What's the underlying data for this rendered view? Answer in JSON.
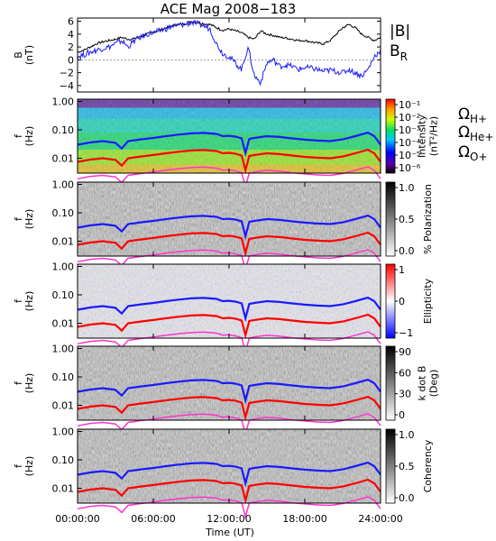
{
  "chart_data": {
    "type": "multi-panel time series with dynamic spectrograms",
    "title": "ACE Mag 2008−183",
    "x_axis": {
      "label": "Time (UT)",
      "range_hours": [
        0,
        24
      ],
      "tick_labels": [
        "00:00:00",
        "06:00:00",
        "12:00:00",
        "18:00:00",
        "24:00:00"
      ],
      "tick_hours": [
        0,
        6,
        12,
        18,
        24
      ]
    },
    "panels": [
      {
        "id": "b-field",
        "type": "line",
        "ylabel_lines": [
          "B",
          "(nT)"
        ],
        "ylim": [
          -5,
          6.5
        ],
        "yticks": [
          -4,
          -2,
          0,
          2,
          4,
          6
        ],
        "ytick_labels": [
          "−4",
          "−2",
          "0",
          "2",
          "4",
          "6"
        ],
        "series": [
          {
            "name": "|B|",
            "color": "#000000",
            "hours": [
              0,
              0.5,
              1,
              1.5,
              2,
              2.5,
              3,
              3.5,
              4,
              4.5,
              5,
              5.5,
              6,
              6.5,
              7,
              7.5,
              8,
              8.5,
              9,
              9.5,
              10,
              10.5,
              11,
              11.5,
              12,
              12.5,
              13,
              13.5,
              14,
              14.5,
              15,
              15.5,
              16,
              16.5,
              17,
              17.5,
              18,
              18.5,
              19,
              19.5,
              20,
              20.5,
              21,
              21.5,
              22,
              22.5,
              23,
              23.5,
              24
            ],
            "values": [
              1.2,
              1.5,
              2.0,
              2.5,
              2.8,
              3.0,
              3.2,
              3.5,
              3.2,
              3.3,
              3.6,
              4.0,
              4.3,
              4.6,
              5.0,
              5.3,
              5.5,
              5.6,
              6.0,
              5.8,
              5.6,
              5.5,
              5.0,
              4.6,
              4.8,
              4.5,
              4.2,
              3.5,
              3.2,
              4.5,
              4.0,
              3.8,
              3.5,
              3.4,
              3.2,
              3.0,
              3.0,
              2.8,
              2.6,
              2.5,
              3.0,
              4.0,
              5.0,
              5.5,
              5.0,
              4.0,
              3.5,
              3.0,
              3.5
            ]
          },
          {
            "name": "B",
            "name_sub": "R",
            "color": "#1a1aff",
            "hours": [
              0,
              0.5,
              1,
              1.5,
              2,
              2.5,
              3,
              3.5,
              4,
              4.5,
              5,
              5.5,
              6,
              6.5,
              7,
              7.5,
              8,
              8.5,
              9,
              9.5,
              10,
              10.5,
              11,
              11.5,
              12,
              12.5,
              13,
              13.5,
              14,
              14.5,
              15,
              15.5,
              16,
              16.5,
              17,
              17.5,
              18,
              18.5,
              19,
              19.5,
              20,
              20.5,
              21,
              21.5,
              22,
              22.5,
              23,
              23.5,
              24
            ],
            "values": [
              0.5,
              0.8,
              1.2,
              1.5,
              1.8,
              2.0,
              2.5,
              3.0,
              2.0,
              3.0,
              3.5,
              4.0,
              4.2,
              4.5,
              4.8,
              5.2,
              5.4,
              5.5,
              5.8,
              5.6,
              5.3,
              4.8,
              2.5,
              1.0,
              0.5,
              -0.5,
              -1.5,
              2.0,
              -2.5,
              -3.5,
              -0.5,
              0,
              -1.0,
              -0.8,
              -1.0,
              -1.5,
              -1.2,
              -1.3,
              -1.5,
              -1.8,
              -1.6,
              -1.8,
              -2.0,
              -1.5,
              -2.0,
              -2.5,
              -1.5,
              0.5,
              1.5
            ]
          }
        ]
      },
      {
        "id": "intensity",
        "type": "spectrogram",
        "ylabel_lines": [
          "f",
          "(Hz)"
        ],
        "colorbar": {
          "label_lines": [
            "Intensity",
            "(nT²/Hz)"
          ],
          "scale": "log",
          "range": [
            1e-06,
            0.3
          ],
          "tick_labels": [
            "10⁻¹",
            "10⁻²",
            "10⁻³",
            "10⁻⁴",
            "10⁻⁵",
            "10⁻⁶"
          ],
          "palette": "rainbow"
        }
      },
      {
        "id": "polarization",
        "type": "spectrogram",
        "ylabel_lines": [
          "f",
          "(Hz)"
        ],
        "colorbar": {
          "label_lines": [
            "% Polarization"
          ],
          "range": [
            0,
            1
          ],
          "tick_labels": [
            "1.0",
            "0.5",
            "0.0"
          ],
          "palette": "gray"
        }
      },
      {
        "id": "ellipticity",
        "type": "spectrogram",
        "ylabel_lines": [
          "f",
          "(Hz)"
        ],
        "colorbar": {
          "label_lines": [
            "Ellipticity"
          ],
          "range": [
            -1,
            1
          ],
          "tick_labels": [
            "1",
            "0",
            "−1"
          ],
          "palette": "bluewhitered"
        }
      },
      {
        "id": "kdotb",
        "type": "spectrogram",
        "ylabel_lines": [
          "f",
          "(Hz)"
        ],
        "colorbar": {
          "label_lines": [
            "k dot B",
            "(Deg)"
          ],
          "range": [
            0,
            90
          ],
          "tick_labels": [
            "90",
            "60",
            "30",
            "0"
          ],
          "palette": "gray"
        }
      },
      {
        "id": "coherency",
        "type": "spectrogram",
        "ylabel_lines": [
          "f",
          "(Hz)"
        ],
        "colorbar": {
          "label_lines": [
            "Coherency"
          ],
          "range": [
            0,
            1
          ],
          "tick_labels": [
            "1.0",
            "0.5",
            "0.0"
          ],
          "palette": "gray"
        }
      }
    ],
    "frequency_axis": {
      "scale": "log",
      "range_hz": [
        0.003,
        1.2
      ],
      "tick_hz": [
        1,
        0.1,
        0.01
      ],
      "tick_labels": [
        "1.00",
        "0.10",
        "0.01"
      ]
    },
    "gyrofrequency_overlays": [
      {
        "symbol": "Ω",
        "sub": "H+",
        "color": "#1a1aff",
        "hours": [
          0,
          1,
          2,
          3,
          3.5,
          4,
          5,
          6,
          7,
          8,
          9,
          10,
          11,
          11.5,
          12,
          12.5,
          13,
          13.3,
          13.6,
          14,
          15,
          16,
          17,
          18,
          19,
          20,
          21,
          22,
          23,
          23.5,
          24
        ],
        "values": [
          0.03,
          0.036,
          0.04,
          0.035,
          0.022,
          0.04,
          0.046,
          0.052,
          0.06,
          0.068,
          0.075,
          0.078,
          0.072,
          0.06,
          0.062,
          0.058,
          0.05,
          0.015,
          0.048,
          0.052,
          0.06,
          0.056,
          0.05,
          0.045,
          0.042,
          0.04,
          0.046,
          0.06,
          0.08,
          0.06,
          0.03
        ]
      },
      {
        "symbol": "Ω",
        "sub": "He+",
        "color": "#ff0000",
        "hours": [
          0,
          1,
          2,
          3,
          3.5,
          4,
          5,
          6,
          7,
          8,
          9,
          10,
          11,
          11.5,
          12,
          12.5,
          13,
          13.3,
          13.6,
          14,
          15,
          16,
          17,
          18,
          19,
          20,
          21,
          22,
          23,
          23.5,
          24
        ],
        "values": [
          0.0075,
          0.009,
          0.01,
          0.0088,
          0.0055,
          0.01,
          0.0115,
          0.013,
          0.015,
          0.017,
          0.0188,
          0.0195,
          0.018,
          0.015,
          0.0155,
          0.0145,
          0.0125,
          0.0038,
          0.012,
          0.013,
          0.015,
          0.014,
          0.0125,
          0.0112,
          0.0105,
          0.01,
          0.0115,
          0.015,
          0.02,
          0.015,
          0.0075
        ]
      },
      {
        "symbol": "Ω",
        "sub": "O+",
        "color": "#ff33cc",
        "hours": [
          0,
          1,
          2,
          3,
          3.5,
          4,
          5,
          6,
          7,
          8,
          9,
          10,
          11,
          11.5,
          12,
          12.5,
          13,
          13.3,
          13.6,
          14,
          15,
          16,
          17,
          18,
          19,
          20,
          21,
          22,
          23,
          23.5,
          24
        ],
        "values": [
          0.0019,
          0.0023,
          0.0025,
          0.0022,
          0.0014,
          0.0025,
          0.0029,
          0.0033,
          0.0038,
          0.0043,
          0.0047,
          0.0049,
          0.0045,
          0.0038,
          0.0039,
          0.0036,
          0.0031,
          0.001,
          0.003,
          0.0033,
          0.0038,
          0.0035,
          0.0031,
          0.0028,
          0.0026,
          0.0025,
          0.0029,
          0.0038,
          0.005,
          0.0038,
          0.0019
        ]
      }
    ]
  }
}
